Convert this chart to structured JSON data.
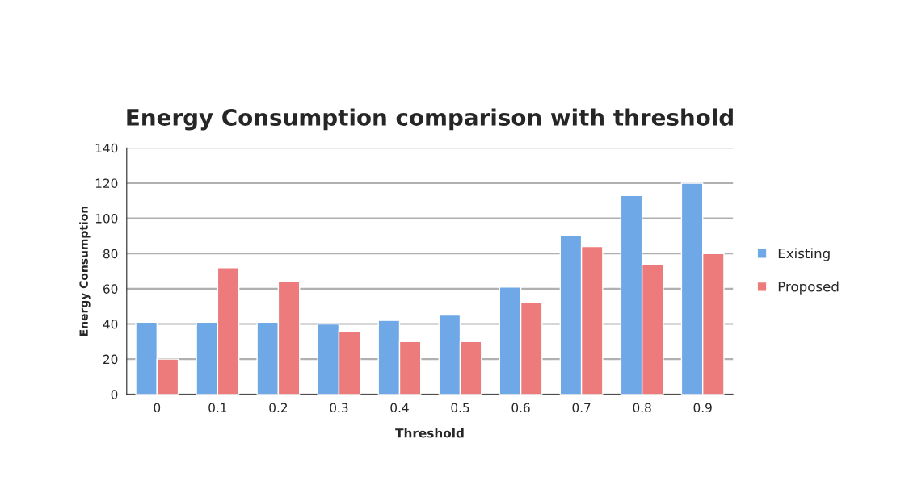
{
  "chart_data": {
    "type": "bar",
    "title": "Energy Consumption comparison with threshold",
    "xlabel": "Threshold",
    "ylabel": "Energy Consumption",
    "categories": [
      "0",
      "0.1",
      "0.2",
      "0.3",
      "0.4",
      "0.5",
      "0.6",
      "0.7",
      "0.8",
      "0.9"
    ],
    "series": [
      {
        "name": "Existing",
        "color": "#6ea8e6",
        "values": [
          41,
          41,
          41,
          40,
          42,
          45,
          61,
          90,
          113,
          120
        ]
      },
      {
        "name": "Proposed",
        "color": "#ee7b7b",
        "values": [
          20,
          72,
          64,
          36,
          30,
          30,
          52,
          84,
          74,
          80
        ]
      }
    ],
    "ylim": [
      0,
      140
    ],
    "yticks": [
      0,
      20,
      40,
      60,
      80,
      100,
      120,
      140
    ],
    "grid": "y",
    "legend": "right"
  }
}
